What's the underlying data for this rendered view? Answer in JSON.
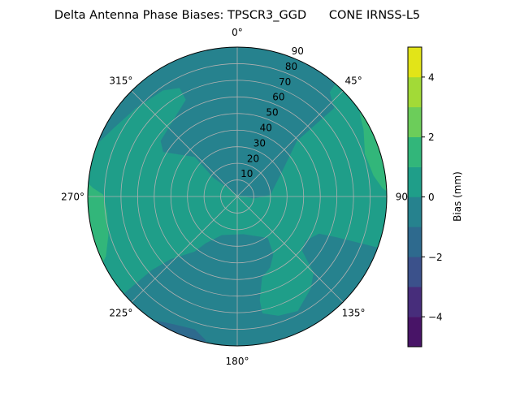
{
  "chart_data": {
    "type": "polar-contour",
    "title": "Delta Antenna Phase Biases: TPSCR3_GGD      CONE IRNSS-L5",
    "angular_ticks": [
      "0°",
      "45°",
      "90",
      "135°",
      "180°",
      "225°",
      "270°",
      "315°"
    ],
    "angular_tick_values": [
      0,
      45,
      90,
      135,
      180,
      225,
      270,
      315
    ],
    "radial_ticks": [
      "10",
      "20",
      "30",
      "40",
      "50",
      "60",
      "70",
      "80",
      "90"
    ],
    "radial_tick_values": [
      10,
      20,
      30,
      40,
      50,
      60,
      70,
      80,
      90
    ],
    "radial_range": [
      0,
      90
    ],
    "radial_label_azimuth": 22.5,
    "grid": true,
    "background_level": [
      0,
      1
    ],
    "regions": [
      {
        "level": [
          -1,
          0
        ],
        "points": [
          [
            292,
            89
          ],
          [
            292,
            90
          ],
          [
            41,
            90
          ],
          [
            41.5,
            84
          ],
          [
            47.6,
            79
          ],
          [
            47,
            49
          ],
          [
            62,
            30
          ],
          [
            87,
            20
          ],
          [
            97,
            10
          ],
          [
            0,
            1
          ],
          [
            308,
            18
          ],
          [
            313,
            35
          ],
          [
            301,
            52
          ],
          [
            306,
            57
          ],
          [
            320,
            60
          ],
          [
            332,
            66
          ],
          [
            332,
            74
          ],
          [
            325,
            78
          ],
          [
            311,
            81
          ],
          [
            299,
            85
          ]
        ]
      },
      {
        "level": [
          -1,
          0
        ],
        "points": [
          [
            229.4,
            90
          ],
          [
            229.3,
            68
          ],
          [
            226.7,
            55
          ],
          [
            217.7,
            42
          ],
          [
            214,
            34
          ],
          [
            201.7,
            25
          ],
          [
            170.7,
            23
          ],
          [
            143.6,
            31
          ],
          [
            148,
            41
          ],
          [
            155,
            47
          ],
          [
            163,
            51
          ],
          [
            167.8,
            64
          ],
          [
            167.9,
            72
          ],
          [
            161,
            76
          ],
          [
            152.2,
            78
          ],
          [
            141.5,
            71
          ],
          [
            135,
            65
          ],
          [
            130,
            51
          ],
          [
            122.8,
            49
          ],
          [
            114.5,
            54
          ],
          [
            112.3,
            65
          ],
          [
            110,
            90
          ]
        ]
      },
      {
        "level": [
          1,
          2
        ],
        "points": [
          [
            56,
            90
          ],
          [
            88,
            90
          ],
          [
            86.6,
            87.4
          ],
          [
            81.3,
            83
          ],
          [
            71.6,
            81
          ],
          [
            62.2,
            86
          ],
          [
            55.9,
            89
          ]
        ]
      },
      {
        "level": [
          1,
          2
        ],
        "points": [
          [
            273.4,
            87
          ],
          [
            270.8,
            80.6
          ],
          [
            262.6,
            79
          ],
          [
            253.3,
            81
          ],
          [
            245.4,
            87
          ],
          [
            244,
            90
          ],
          [
            275,
            90
          ]
        ]
      },
      {
        "level": [
          -2,
          -1
        ],
        "points": [
          [
            212.7,
            89
          ],
          [
            206.6,
            86
          ],
          [
            197.7,
            84
          ],
          [
            192.4,
            88.5
          ],
          [
            192,
            90
          ],
          [
            214,
            90
          ]
        ]
      }
    ],
    "colorbar": {
      "label": "Bias (mm)",
      "levels": [
        -5,
        -4,
        -3,
        -2,
        -1,
        0,
        1,
        2,
        3,
        4,
        5
      ],
      "colors": [
        "#481467",
        "#472d7b",
        "#3b518b",
        "#2e6a8e",
        "#26828e",
        "#1f9e89",
        "#32b67a",
        "#6ccd5a",
        "#a2da37",
        "#e2e418"
      ],
      "ticks": [
        "−4",
        "−2",
        "0",
        "2",
        "4"
      ],
      "tick_values": [
        -4,
        -2,
        0,
        2,
        4
      ]
    }
  }
}
